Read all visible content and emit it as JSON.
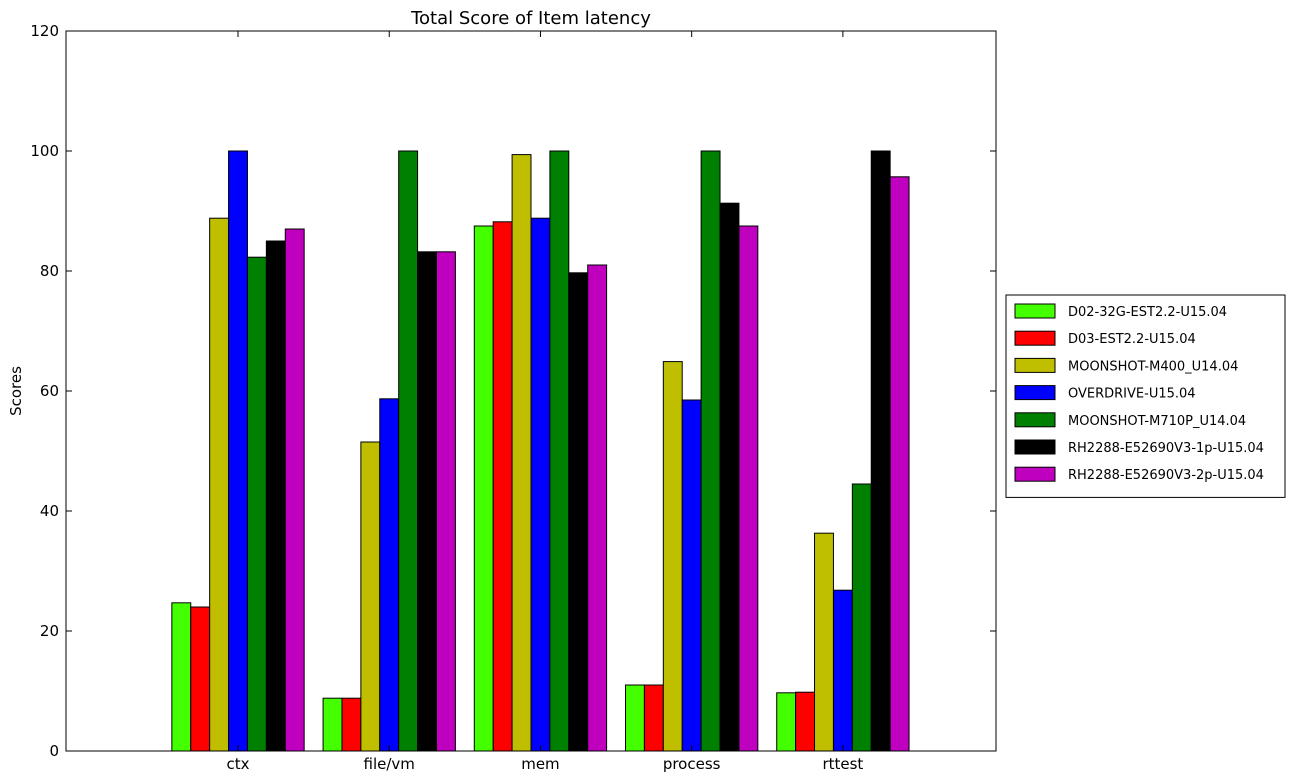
{
  "chart_data": {
    "type": "bar",
    "title": "Total Score of Item latency",
    "xlabel": "",
    "ylabel": "Scores",
    "ylim": [
      0,
      120
    ],
    "yticks": [
      0,
      20,
      40,
      60,
      80,
      100,
      120
    ],
    "grid": false,
    "legend_position": "outside-right",
    "categories": [
      "ctx",
      "file/vm",
      "mem",
      "process",
      "rttest"
    ],
    "series": [
      {
        "name": "D02-32G-EST2.2-U15.04",
        "color": "#44ff00",
        "values": [
          24.7,
          8.8,
          87.5,
          11.0,
          9.7
        ]
      },
      {
        "name": "D03-EST2.2-U15.04",
        "color": "#ff0000",
        "values": [
          24.0,
          8.8,
          88.2,
          11.0,
          9.8
        ]
      },
      {
        "name": "MOONSHOT-M400_U14.04",
        "color": "#bfbf00",
        "values": [
          88.8,
          51.5,
          99.4,
          64.9,
          36.3
        ]
      },
      {
        "name": "OVERDRIVE-U15.04",
        "color": "#0000ff",
        "values": [
          100.0,
          58.7,
          88.8,
          58.5,
          26.8
        ]
      },
      {
        "name": "MOONSHOT-M710P_U14.04",
        "color": "#008000",
        "values": [
          82.3,
          100.0,
          100.0,
          100.0,
          44.5
        ]
      },
      {
        "name": "RH2288-E52690V3-1p-U15.04",
        "color": "#000000",
        "values": [
          85.0,
          83.2,
          79.7,
          91.3,
          100.0
        ]
      },
      {
        "name": "RH2288-E52690V3-2p-U15.04",
        "color": "#bf00bf",
        "values": [
          87.0,
          83.2,
          81.0,
          87.5,
          95.7
        ]
      }
    ]
  }
}
